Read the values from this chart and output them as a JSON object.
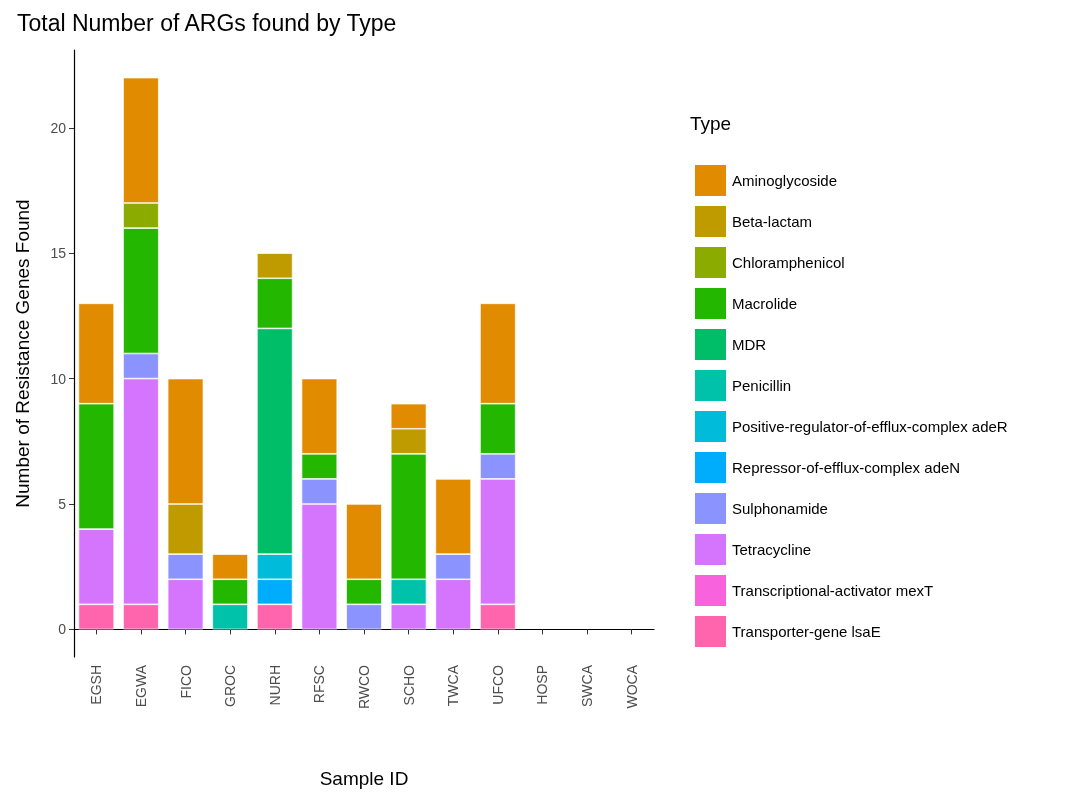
{
  "chart_data": {
    "type": "bar",
    "stacked": true,
    "title": "Total Number of ARGs found by Type",
    "xlabel": "Sample ID",
    "ylabel": "Number of Resistance Genes Found",
    "legend_title": "Type",
    "legend": "right",
    "grid": false,
    "categories": [
      "EGSH",
      "EGWA",
      "FICO",
      "GROC",
      "NURH",
      "RFSC",
      "RWCO",
      "SCHO",
      "TWCA",
      "UFCO",
      "HOSP",
      "SWCA",
      "WOCA"
    ],
    "ylim": [
      -1.1,
      23.1
    ],
    "yticks": [
      0,
      5,
      10,
      15,
      20
    ],
    "series": [
      {
        "name": "Transporter-gene lsaE",
        "color": "#ff65ac",
        "values": [
          1,
          1,
          null,
          null,
          1,
          null,
          null,
          null,
          null,
          1,
          null,
          null,
          null
        ]
      },
      {
        "name": "Transcriptional-activator mexT",
        "color": "#f962dd",
        "values": [
          null,
          null,
          null,
          null,
          null,
          null,
          null,
          null,
          null,
          null,
          null,
          null,
          null
        ]
      },
      {
        "name": "Tetracycline",
        "color": "#d575fe",
        "values": [
          3,
          9,
          2,
          null,
          null,
          5,
          null,
          1,
          2,
          5,
          null,
          null,
          null
        ]
      },
      {
        "name": "Sulphonamide",
        "color": "#8b93ff",
        "values": [
          null,
          1,
          1,
          null,
          null,
          1,
          1,
          null,
          1,
          1,
          null,
          null,
          null
        ]
      },
      {
        "name": "Repressor-of-efflux-complex adeN",
        "color": "#00acfc",
        "values": [
          null,
          null,
          null,
          null,
          1,
          null,
          null,
          null,
          null,
          null,
          null,
          null,
          null
        ]
      },
      {
        "name": "Positive-regulator-of-efflux-complex adeR",
        "color": "#00bbda",
        "values": [
          null,
          null,
          null,
          null,
          1,
          null,
          null,
          null,
          null,
          null,
          null,
          null,
          null
        ]
      },
      {
        "name": "Penicillin",
        "color": "#00c1a9",
        "values": [
          null,
          null,
          null,
          1,
          null,
          null,
          null,
          1,
          null,
          null,
          null,
          null,
          null
        ]
      },
      {
        "name": "MDR",
        "color": "#00be67",
        "values": [
          null,
          null,
          null,
          null,
          9,
          null,
          null,
          null,
          null,
          null,
          null,
          null,
          null
        ]
      },
      {
        "name": "Macrolide",
        "color": "#24b700",
        "values": [
          5,
          5,
          null,
          1,
          2,
          1,
          1,
          5,
          null,
          2,
          null,
          null,
          null
        ]
      },
      {
        "name": "Chloramphenicol",
        "color": "#8cab00",
        "values": [
          null,
          1,
          null,
          null,
          null,
          null,
          null,
          null,
          null,
          null,
          null,
          null,
          null
        ]
      },
      {
        "name": "Beta-lactam",
        "color": "#c09b00",
        "values": [
          null,
          null,
          2,
          null,
          1,
          null,
          null,
          1,
          null,
          null,
          null,
          null,
          null
        ]
      },
      {
        "name": "Aminoglycoside",
        "color": "#e08b00",
        "values": [
          4,
          5,
          5,
          1,
          null,
          3,
          3,
          1,
          3,
          4,
          null,
          null,
          null
        ]
      }
    ]
  }
}
